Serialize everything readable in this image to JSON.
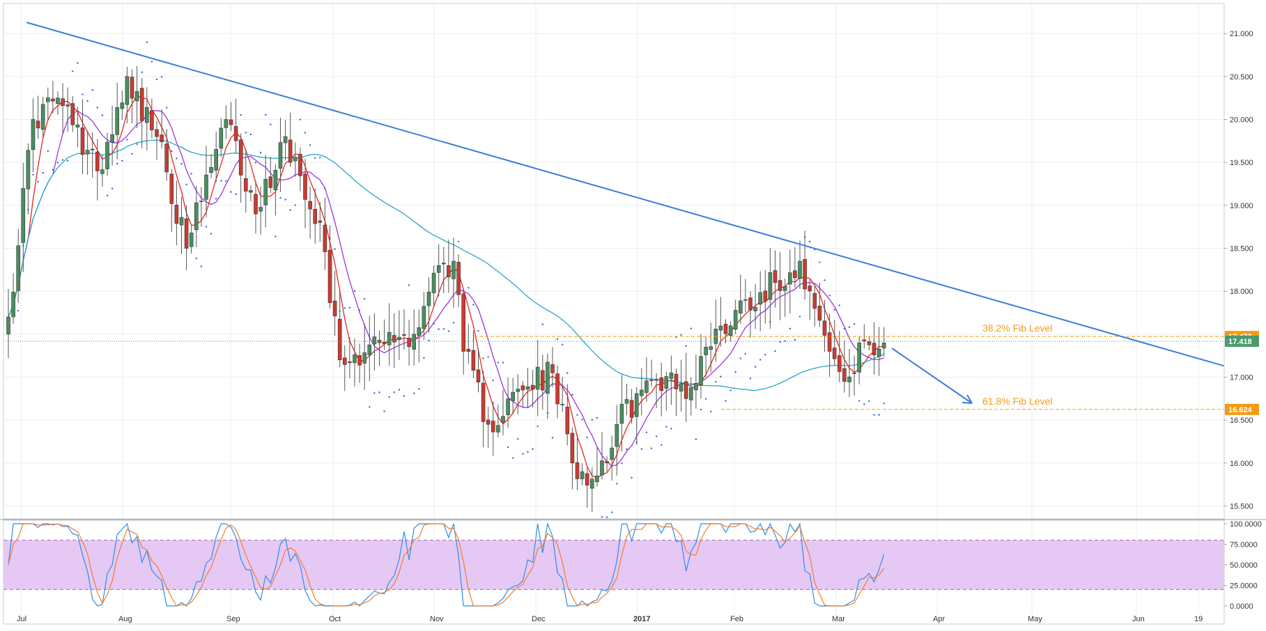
{
  "chart_data": {
    "type": "candlestick",
    "price_axis": {
      "ticks": [
        "21.000",
        "20.500",
        "20.000",
        "19.500",
        "19.000",
        "18.500",
        "18.000",
        "17.500",
        "17.000",
        "16.500",
        "16.000",
        "15.500"
      ],
      "tick_values": [
        21.0,
        20.5,
        20.0,
        19.5,
        19.0,
        18.5,
        18.0,
        17.5,
        17.0,
        16.5,
        16.0,
        15.5
      ],
      "range": [
        15.35,
        21.35
      ]
    },
    "time_axis": {
      "labels": [
        "Jul",
        "Aug",
        "Sep",
        "Oct",
        "Nov",
        "Dec",
        "2017",
        "Feb",
        "Mar",
        "Apr",
        "May",
        "Jun",
        "19"
      ],
      "bold_labels": [
        "2017"
      ]
    },
    "price_tags": [
      {
        "value": 17.473,
        "label": "17.473",
        "color": "#f39c12"
      },
      {
        "value": 17.418,
        "label": "17.418",
        "color": "#4a9a6a"
      },
      {
        "value": 16.624,
        "label": "16.624",
        "color": "#f39c12"
      }
    ],
    "annotations": [
      {
        "text": "38.2% Fib Level",
        "level": 17.473,
        "color": "#f39c12"
      },
      {
        "text": "61.8% Fib Level",
        "level": 16.624,
        "color": "#f39c12"
      }
    ],
    "trendline": {
      "from": {
        "date": "2016-07-01",
        "price": 21.13
      },
      "to": {
        "date": "2017-06-25",
        "price": 17.13
      },
      "color": "#3b7dd8"
    },
    "projection_arrow": {
      "color": "#3b7dd8",
      "direction": "down"
    },
    "candles": {
      "bull_color": "#4a8f60",
      "bear_color": "#cc3b30",
      "count": 178,
      "keypoints": [
        {
          "i": 0,
          "p": 17.7
        },
        {
          "i": 5,
          "p": 20.0
        },
        {
          "i": 10,
          "p": 20.25
        },
        {
          "i": 18,
          "p": 19.4
        },
        {
          "i": 24,
          "p": 20.5
        },
        {
          "i": 30,
          "p": 19.8
        },
        {
          "i": 36,
          "p": 18.5
        },
        {
          "i": 44,
          "p": 20.0
        },
        {
          "i": 50,
          "p": 18.9
        },
        {
          "i": 56,
          "p": 19.8
        },
        {
          "i": 63,
          "p": 18.8
        },
        {
          "i": 67,
          "p": 17.2
        },
        {
          "i": 75,
          "p": 17.4
        },
        {
          "i": 82,
          "p": 17.5
        },
        {
          "i": 87,
          "p": 18.3
        },
        {
          "i": 90,
          "p": 18.35
        },
        {
          "i": 92,
          "p": 17.3
        },
        {
          "i": 97,
          "p": 16.45
        },
        {
          "i": 104,
          "p": 16.85
        },
        {
          "i": 110,
          "p": 17.05
        },
        {
          "i": 114,
          "p": 16.0
        },
        {
          "i": 119,
          "p": 15.85
        },
        {
          "i": 123,
          "p": 16.45
        },
        {
          "i": 128,
          "p": 16.85
        },
        {
          "i": 134,
          "p": 17.05
        },
        {
          "i": 137,
          "p": 16.75
        },
        {
          "i": 141,
          "p": 17.35
        },
        {
          "i": 149,
          "p": 17.9
        },
        {
          "i": 155,
          "p": 18.1
        },
        {
          "i": 160,
          "p": 18.35
        },
        {
          "i": 163,
          "p": 17.8
        },
        {
          "i": 166,
          "p": 17.3
        },
        {
          "i": 169,
          "p": 16.95
        },
        {
          "i": 171,
          "p": 17.05
        },
        {
          "i": 173,
          "p": 17.42
        }
      ]
    },
    "moving_averages": [
      {
        "color": "#e8241e",
        "period": 5
      },
      {
        "color": "#9b33e0",
        "period": 10
      },
      {
        "color": "#29a6c8",
        "period": 60
      }
    ],
    "parabolic_sar": {
      "color": "#2d64c8"
    },
    "oscillator": {
      "ticks": [
        "100.0000",
        "75.0000",
        "50.0000",
        "25.0000",
        "0.0000"
      ],
      "tick_values": [
        100,
        75,
        50,
        25,
        0
      ],
      "overbought": 80,
      "oversold": 20,
      "band_color": "#e6c8f5",
      "line_colors": [
        "#2d8ee8",
        "#f07e2a"
      ]
    }
  }
}
